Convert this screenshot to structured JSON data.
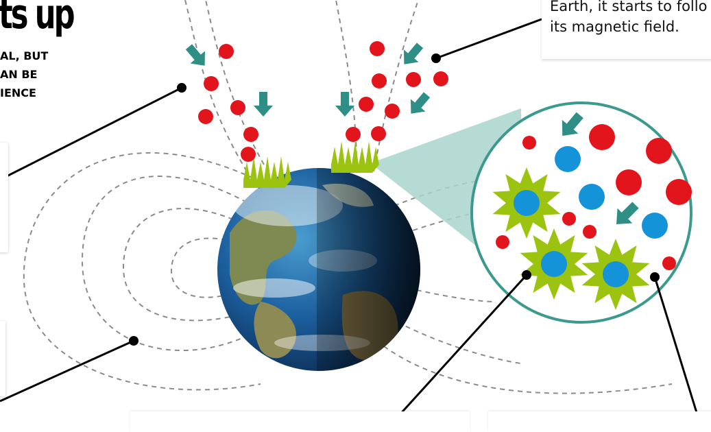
{
  "title": "ts up",
  "intro_lines": [
    "AL, BUT",
    "AN BE",
    "IENCE"
  ],
  "callout_lines": [
    "Earth, it starts to follo",
    "its magnetic field."
  ],
  "colors": {
    "particle_red": "#e2151c",
    "ion_blue": "#1593d8",
    "glow_green": "#9cc30f",
    "arrow_teal": "#2f8f86",
    "field_line": "#8a8a8a",
    "zoom_border": "#3a9a8e",
    "zoom_wedge": "#a9d5cd",
    "ocean": "#1c5f9e",
    "land": "#8a8a55"
  }
}
